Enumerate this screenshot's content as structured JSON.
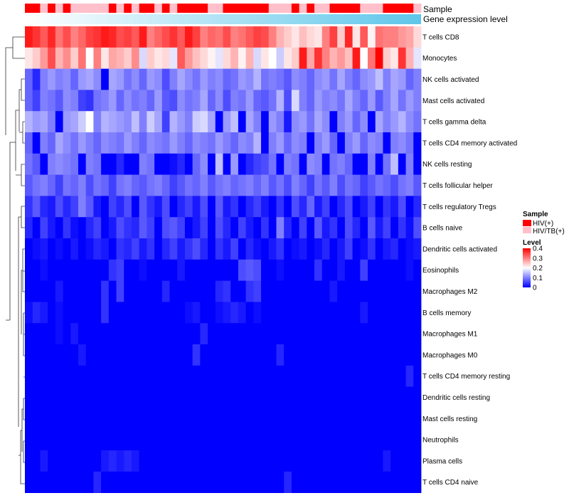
{
  "chart_data": {
    "type": "heatmap",
    "title": "",
    "annotations": {
      "sample_label": "Sample",
      "expression_label": "Gene expression level",
      "sample_groups": [
        "HIV(+)",
        "HIV(+)",
        "HIV/TB(+)",
        "HIV(+)",
        "HIV/TB(+)",
        "HIV(+)",
        "HIV/TB(+)",
        "HIV/TB(+)",
        "HIV/TB(+)",
        "HIV/TB(+)",
        "HIV/TB(+)",
        "HIV(+)",
        "HIV/TB(+)",
        "HIV(+)",
        "HIV/TB(+)",
        "HIV(+)",
        "HIV(+)",
        "HIV/TB(+)",
        "HIV(+)",
        "HIV/TB(+)",
        "HIV(+)",
        "HIV(+)",
        "HIV(+)",
        "HIV(+)",
        "HIV/TB(+)",
        "HIV/TB(+)",
        "HIV(+)",
        "HIV(+)",
        "HIV(+)",
        "HIV(+)",
        "HIV(+)",
        "HIV(+)",
        "HIV/TB(+)",
        "HIV/TB(+)",
        "HIV/TB(+)",
        "HIV(+)",
        "HIV/TB(+)",
        "HIV(+)",
        "HIV/TB(+)",
        "HIV/TB(+)",
        "HIV(+)",
        "HIV(+)",
        "HIV(+)",
        "HIV(+)",
        "HIV/TB(+)",
        "HIV/TB(+)",
        "HIV/TB(+)",
        "HIV(+)",
        "HIV(+)",
        "HIV(+)",
        "HIV(+)",
        "HIV/TB(+)"
      ],
      "expression_gradient": [
        "#ffffff",
        "#5ec6ea"
      ]
    },
    "rows": [
      "T cells CD8",
      "Monocytes",
      "NK cells activated",
      "Mast cells activated",
      "T cells gamma delta",
      "T cells CD4 memory activated",
      "NK cells resting",
      "T cells follicular helper",
      "T cells regulatory  Tregs",
      "B cells naive",
      "Dendritic cells activated",
      "Eosinophils",
      "Macrophages M2",
      "B cells memory",
      "Macrophages M1",
      "Macrophages M0",
      "T cells CD4 memory resting",
      "Dendritic cells resting",
      "Mast cells resting",
      "Neutrophils",
      "Plasma cells",
      "T cells CD4 naive"
    ],
    "num_samples": 52,
    "value_range": [
      0,
      0.4
    ],
    "values": [
      [
        0.38,
        0.36,
        0.33,
        0.37,
        0.31,
        0.34,
        0.3,
        0.32,
        0.35,
        0.36,
        0.38,
        0.37,
        0.34,
        0.35,
        0.33,
        0.38,
        0.3,
        0.32,
        0.34,
        0.36,
        0.33,
        0.38,
        0.35,
        0.3,
        0.32,
        0.31,
        0.34,
        0.3,
        0.31,
        0.33,
        0.35,
        0.34,
        0.3,
        0.26,
        0.24,
        0.22,
        0.25,
        0.23,
        0.22,
        0.3,
        0.35,
        0.24,
        0.37,
        0.22,
        0.33,
        0.21,
        0.31,
        0.3,
        0.3,
        0.28,
        0.27,
        0.23
      ],
      [
        0.22,
        0.24,
        0.28,
        0.34,
        0.26,
        0.29,
        0.24,
        0.31,
        0.2,
        0.3,
        0.22,
        0.27,
        0.26,
        0.24,
        0.29,
        0.17,
        0.24,
        0.22,
        0.23,
        0.18,
        0.33,
        0.28,
        0.25,
        0.23,
        0.21,
        0.18,
        0.23,
        0.26,
        0.21,
        0.26,
        0.17,
        0.22,
        0.2,
        0.16,
        0.22,
        0.24,
        0.38,
        0.27,
        0.36,
        0.3,
        0.26,
        0.28,
        0.25,
        0.38,
        0.2,
        0.31,
        0.4,
        0.24,
        0.22,
        0.36,
        0.26,
        0.18
      ],
      [
        0.08,
        0.03,
        0.1,
        0.12,
        0.1,
        0.11,
        0.08,
        0.12,
        0.13,
        0.11,
        0.0,
        0.13,
        0.12,
        0.09,
        0.11,
        0.08,
        0.12,
        0.11,
        0.06,
        0.1,
        0.13,
        0.11,
        0.09,
        0.12,
        0.1,
        0.11,
        0.08,
        0.09,
        0.12,
        0.11,
        0.14,
        0.09,
        0.1,
        0.09,
        0.07,
        0.11,
        0.1,
        0.08,
        0.11,
        0.12,
        0.09,
        0.13,
        0.1,
        0.08,
        0.11,
        0.12,
        0.15,
        0.1,
        0.13,
        0.12,
        0.08,
        0.1
      ],
      [
        0.08,
        0.05,
        0.1,
        0.09,
        0.07,
        0.11,
        0.1,
        0.05,
        0.04,
        0.09,
        0.1,
        0.12,
        0.08,
        0.11,
        0.09,
        0.1,
        0.08,
        0.12,
        0.07,
        0.06,
        0.11,
        0.09,
        0.1,
        0.13,
        0.08,
        0.11,
        0.06,
        0.1,
        0.09,
        0.12,
        0.08,
        0.07,
        0.09,
        0.14,
        0.06,
        0.17,
        0.1,
        0.08,
        0.12,
        0.1,
        0.11,
        0.09,
        0.13,
        0.1,
        0.08,
        0.12,
        0.07,
        0.1,
        0.13,
        0.09,
        0.12,
        0.1
      ],
      [
        0.14,
        0.12,
        0.13,
        0.1,
        0.0,
        0.12,
        0.13,
        0.16,
        0.2,
        0.1,
        0.14,
        0.13,
        0.12,
        0.11,
        0.15,
        0.1,
        0.16,
        0.13,
        0.05,
        0.14,
        0.12,
        0.1,
        0.16,
        0.17,
        0.13,
        0.0,
        0.12,
        0.15,
        0.0,
        0.13,
        0.1,
        0.0,
        0.12,
        0.1,
        0.02,
        0.11,
        0.12,
        0.09,
        0.13,
        0.11,
        0.0,
        0.1,
        0.12,
        0.08,
        0.11,
        0.0,
        0.13,
        0.1,
        0.12,
        0.14,
        0.11,
        0.09
      ],
      [
        0.08,
        0.0,
        0.1,
        0.08,
        0.13,
        0.11,
        0.09,
        0.12,
        0.1,
        0.08,
        0.11,
        0.1,
        0.09,
        0.12,
        0.1,
        0.08,
        0.11,
        0.1,
        0.09,
        0.12,
        0.1,
        0.08,
        0.11,
        0.1,
        0.09,
        0.12,
        0.1,
        0.08,
        0.11,
        0.1,
        0.14,
        0.0,
        0.1,
        0.12,
        0.08,
        0.11,
        0.1,
        0.0,
        0.1,
        0.12,
        0.08,
        0.0,
        0.1,
        0.12,
        0.08,
        0.11,
        0.1,
        0.0,
        0.1,
        0.11,
        0.09,
        0.0
      ],
      [
        0.09,
        0.07,
        0.0,
        0.1,
        0.11,
        0.1,
        0.09,
        0.0,
        0.1,
        0.09,
        0.0,
        0.0,
        0.03,
        0.0,
        0.0,
        0.1,
        0.09,
        0.0,
        0.0,
        0.01,
        0.03,
        0.0,
        0.08,
        0.11,
        0.0,
        0.15,
        0.0,
        0.12,
        0.0,
        0.03,
        0.05,
        0.06,
        0.09,
        0.0,
        0.1,
        0.09,
        0.0,
        0.11,
        0.1,
        0.0,
        0.09,
        0.1,
        0.08,
        0.0,
        0.0,
        0.1,
        0.0,
        0.09,
        0.15,
        0.0,
        0.1,
        0.0
      ],
      [
        0.07,
        0.09,
        0.1,
        0.08,
        0.05,
        0.09,
        0.08,
        0.1,
        0.06,
        0.09,
        0.08,
        0.05,
        0.09,
        0.1,
        0.08,
        0.07,
        0.09,
        0.1,
        0.08,
        0.05,
        0.07,
        0.09,
        0.08,
        0.1,
        0.07,
        0.09,
        0.1,
        0.08,
        0.09,
        0.1,
        0.08,
        0.1,
        0.07,
        0.09,
        0.06,
        0.1,
        0.08,
        0.05,
        0.09,
        0.07,
        0.1,
        0.06,
        0.09,
        0.08,
        0.05,
        0.07,
        0.09,
        0.08,
        0.06,
        0.09,
        0.1,
        0.07
      ],
      [
        0.04,
        0.07,
        0.03,
        0.02,
        0.06,
        0.03,
        0.05,
        0.1,
        0.07,
        0.02,
        0.0,
        0.05,
        0.03,
        0.06,
        0.0,
        0.07,
        0.04,
        0.02,
        0.06,
        0.0,
        0.03,
        0.05,
        0.02,
        0.06,
        0.0,
        0.07,
        0.02,
        0.04,
        0.0,
        0.03,
        0.05,
        0.02,
        0.0,
        0.04,
        0.0,
        0.06,
        0.03,
        0.08,
        0.02,
        0.05,
        0.0,
        0.03,
        0.06,
        0.0,
        0.02,
        0.05,
        0.0,
        0.04,
        0.02,
        0.06,
        0.0,
        0.03
      ],
      [
        0.03,
        0.0,
        0.05,
        0.02,
        0.0,
        0.04,
        0.01,
        0.0,
        0.03,
        0.05,
        0.0,
        0.02,
        0.06,
        0.04,
        0.03,
        0.07,
        0.05,
        0.0,
        0.06,
        0.07,
        0.05,
        0.0,
        0.02,
        0.05,
        0.0,
        0.06,
        0.03,
        0.0,
        0.05,
        0.02,
        0.0,
        0.04,
        0.0,
        0.1,
        0.03,
        0.0,
        0.05,
        0.0,
        0.07,
        0.02,
        0.04,
        0.0,
        0.06,
        0.03,
        0.0,
        0.07,
        0.02,
        0.05,
        0.0,
        0.04,
        0.01,
        0.06
      ],
      [
        0.0,
        0.01,
        0.02,
        0.0,
        0.01,
        0.0,
        0.02,
        0.0,
        0.01,
        0.03,
        0.02,
        0.0,
        0.04,
        0.03,
        0.05,
        0.02,
        0.04,
        0.0,
        0.03,
        0.05,
        0.02,
        0.04,
        0.06,
        0.03,
        0.0,
        0.04,
        0.02,
        0.05,
        0.0,
        0.03,
        0.01,
        0.0,
        0.02,
        0.04,
        0.0,
        0.01,
        0.02,
        0.0,
        0.01,
        0.03,
        0.0,
        0.02,
        0.05,
        0.0,
        0.01,
        0.04,
        0.0,
        0.02,
        0.03,
        0.0,
        0.01,
        0.02
      ],
      [
        0.0,
        0.0,
        0.01,
        0.0,
        0.0,
        0.0,
        0.0,
        0.0,
        0.0,
        0.0,
        0.0,
        0.04,
        0.05,
        0.0,
        0.0,
        0.01,
        0.0,
        0.0,
        0.0,
        0.0,
        0.02,
        0.0,
        0.0,
        0.0,
        0.0,
        0.0,
        0.0,
        0.0,
        0.06,
        0.07,
        0.06,
        0.0,
        0.0,
        0.01,
        0.0,
        0.0,
        0.0,
        0.0,
        0.04,
        0.0,
        0.0,
        0.02,
        0.0,
        0.0,
        0.05,
        0.0,
        0.0,
        0.0,
        0.0,
        0.0,
        0.01,
        0.0
      ],
      [
        0.0,
        0.0,
        0.0,
        0.0,
        0.02,
        0.0,
        0.0,
        0.0,
        0.0,
        0.0,
        0.04,
        0.0,
        0.05,
        0.0,
        0.0,
        0.0,
        0.0,
        0.0,
        0.03,
        0.0,
        0.0,
        0.0,
        0.0,
        0.0,
        0.0,
        0.03,
        0.04,
        0.0,
        0.0,
        0.04,
        0.05,
        0.0,
        0.0,
        0.0,
        0.0,
        0.0,
        0.0,
        0.0,
        0.0,
        0.0,
        0.02,
        0.0,
        0.0,
        0.0,
        0.0,
        0.0,
        0.0,
        0.0,
        0.0,
        0.0,
        0.0,
        0.0
      ],
      [
        0.01,
        0.03,
        0.02,
        0.0,
        0.01,
        0.0,
        0.0,
        0.0,
        0.0,
        0.0,
        0.04,
        0.0,
        0.0,
        0.0,
        0.0,
        0.0,
        0.0,
        0.0,
        0.0,
        0.0,
        0.0,
        0.01,
        0.02,
        0.0,
        0.0,
        0.01,
        0.02,
        0.03,
        0.02,
        0.0,
        0.01,
        0.0,
        0.0,
        0.0,
        0.0,
        0.0,
        0.0,
        0.0,
        0.0,
        0.0,
        0.0,
        0.0,
        0.0,
        0.0,
        0.02,
        0.0,
        0.0,
        0.0,
        0.0,
        0.0,
        0.0,
        0.0
      ],
      [
        0.0,
        0.0,
        0.0,
        0.0,
        0.01,
        0.0,
        0.02,
        0.0,
        0.0,
        0.0,
        0.0,
        0.0,
        0.0,
        0.0,
        0.0,
        0.0,
        0.0,
        0.0,
        0.0,
        0.0,
        0.0,
        0.0,
        0.0,
        0.03,
        0.0,
        0.0,
        0.0,
        0.0,
        0.0,
        0.0,
        0.0,
        0.0,
        0.0,
        0.0,
        0.0,
        0.0,
        0.0,
        0.0,
        0.0,
        0.0,
        0.0,
        0.0,
        0.0,
        0.0,
        0.0,
        0.0,
        0.0,
        0.0,
        0.0,
        0.0,
        0.0,
        0.0
      ],
      [
        0.0,
        0.0,
        0.0,
        0.0,
        0.0,
        0.0,
        0.0,
        0.02,
        0.0,
        0.0,
        0.0,
        0.0,
        0.0,
        0.0,
        0.0,
        0.0,
        0.0,
        0.0,
        0.0,
        0.0,
        0.0,
        0.0,
        0.04,
        0.0,
        0.0,
        0.0,
        0.0,
        0.0,
        0.0,
        0.0,
        0.0,
        0.0,
        0.0,
        0.03,
        0.0,
        0.0,
        0.0,
        0.0,
        0.0,
        0.0,
        0.0,
        0.0,
        0.0,
        0.0,
        0.0,
        0.0,
        0.0,
        0.0,
        0.0,
        0.0,
        0.0,
        0.0
      ],
      [
        0.0,
        0.0,
        0.0,
        0.0,
        0.0,
        0.0,
        0.0,
        0.0,
        0.0,
        0.0,
        0.0,
        0.0,
        0.0,
        0.0,
        0.0,
        0.0,
        0.0,
        0.0,
        0.0,
        0.0,
        0.0,
        0.0,
        0.0,
        0.0,
        0.0,
        0.0,
        0.0,
        0.0,
        0.0,
        0.0,
        0.0,
        0.0,
        0.0,
        0.0,
        0.0,
        0.0,
        0.0,
        0.0,
        0.0,
        0.0,
        0.0,
        0.0,
        0.0,
        0.0,
        0.0,
        0.0,
        0.0,
        0.0,
        0.0,
        0.0,
        0.03,
        0.0
      ],
      [
        0.0,
        0.0,
        0.0,
        0.0,
        0.0,
        0.0,
        0.0,
        0.0,
        0.0,
        0.0,
        0.0,
        0.0,
        0.0,
        0.0,
        0.0,
        0.0,
        0.0,
        0.0,
        0.0,
        0.0,
        0.0,
        0.0,
        0.0,
        0.0,
        0.0,
        0.0,
        0.0,
        0.0,
        0.0,
        0.0,
        0.0,
        0.0,
        0.0,
        0.0,
        0.0,
        0.0,
        0.0,
        0.0,
        0.0,
        0.0,
        0.0,
        0.0,
        0.0,
        0.0,
        0.0,
        0.0,
        0.0,
        0.0,
        0.0,
        0.0,
        0.0,
        0.0
      ],
      [
        0.0,
        0.0,
        0.0,
        0.0,
        0.0,
        0.0,
        0.0,
        0.0,
        0.0,
        0.0,
        0.0,
        0.0,
        0.0,
        0.0,
        0.0,
        0.0,
        0.0,
        0.0,
        0.0,
        0.0,
        0.0,
        0.0,
        0.0,
        0.0,
        0.0,
        0.0,
        0.0,
        0.0,
        0.0,
        0.0,
        0.0,
        0.0,
        0.0,
        0.0,
        0.0,
        0.0,
        0.0,
        0.0,
        0.0,
        0.0,
        0.0,
        0.0,
        0.0,
        0.0,
        0.0,
        0.0,
        0.0,
        0.0,
        0.0,
        0.0,
        0.0,
        0.0
      ],
      [
        0.0,
        0.0,
        0.0,
        0.0,
        0.0,
        0.0,
        0.0,
        0.0,
        0.0,
        0.0,
        0.0,
        0.0,
        0.0,
        0.0,
        0.0,
        0.0,
        0.0,
        0.0,
        0.0,
        0.0,
        0.0,
        0.0,
        0.0,
        0.0,
        0.0,
        0.0,
        0.0,
        0.0,
        0.0,
        0.0,
        0.0,
        0.0,
        0.0,
        0.0,
        0.0,
        0.0,
        0.0,
        0.0,
        0.0,
        0.0,
        0.0,
        0.0,
        0.0,
        0.0,
        0.0,
        0.0,
        0.0,
        0.0,
        0.0,
        0.0,
        0.0,
        0.0
      ],
      [
        0.0,
        0.0,
        0.02,
        0.0,
        0.0,
        0.0,
        0.0,
        0.0,
        0.0,
        0.0,
        0.02,
        0.03,
        0.02,
        0.03,
        0.02,
        0.0,
        0.0,
        0.0,
        0.0,
        0.0,
        0.0,
        0.0,
        0.0,
        0.0,
        0.0,
        0.0,
        0.0,
        0.0,
        0.0,
        0.0,
        0.0,
        0.0,
        0.0,
        0.0,
        0.0,
        0.0,
        0.0,
        0.0,
        0.0,
        0.0,
        0.0,
        0.0,
        0.0,
        0.0,
        0.0,
        0.0,
        0.0,
        0.02,
        0.0,
        0.0,
        0.0,
        0.0
      ],
      [
        0.0,
        0.0,
        0.0,
        0.0,
        0.0,
        0.0,
        0.0,
        0.0,
        0.0,
        0.03,
        0.0,
        0.0,
        0.0,
        0.0,
        0.0,
        0.0,
        0.0,
        0.0,
        0.0,
        0.0,
        0.0,
        0.0,
        0.0,
        0.0,
        0.0,
        0.0,
        0.0,
        0.0,
        0.0,
        0.0,
        0.0,
        0.0,
        0.0,
        0.0,
        0.03,
        0.0,
        0.0,
        0.0,
        0.0,
        0.0,
        0.0,
        0.0,
        0.0,
        0.0,
        0.0,
        0.0,
        0.0,
        0.0,
        0.0,
        0.0,
        0.0,
        0.0
      ]
    ],
    "legend": {
      "sample_title": "Sample",
      "sample_entries": [
        {
          "label": "HIV(+)",
          "color": "#ff0000"
        },
        {
          "label": "HIV/TB(+)",
          "color": "#ffc0cb"
        }
      ],
      "level_title": "Level",
      "level_ticks": [
        "0.4",
        "0.3",
        "0.2",
        "0.1",
        "0"
      ],
      "level_tick_values": [
        0.4,
        0.3,
        0.2,
        0.1,
        0
      ]
    },
    "colors": {
      "low": "#0000ff",
      "mid": "#ffffff",
      "high": "#ff0000"
    }
  }
}
